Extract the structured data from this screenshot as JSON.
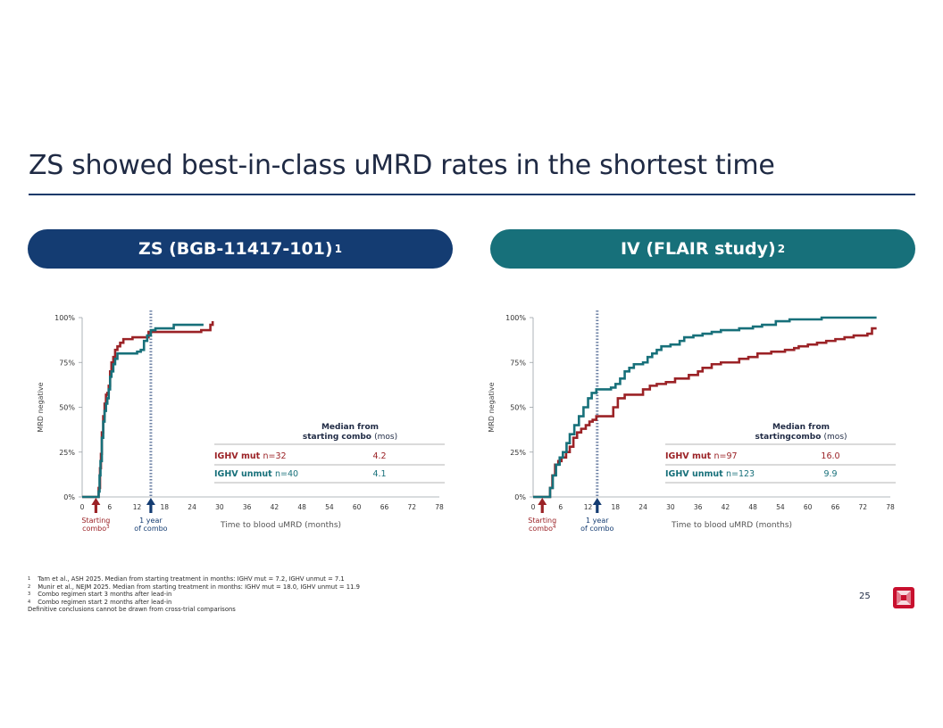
{
  "slide": {
    "title": "ZS showed best-in-class uMRD rates in the shortest time",
    "page_number": "25",
    "left_panel_title": "ZS (BGB-11417-101)",
    "left_panel_sup": "1",
    "right_panel_title": "IV (FLAIR study)",
    "right_panel_sup": "2"
  },
  "footnotes": [
    {
      "mark": "1",
      "text": "Tam et al., ASH 2025. Median from starting treatment in months: IGHV mut = 7.2, IGHV unmut = 7.1"
    },
    {
      "mark": "2",
      "text": "Munir et al., NEJM 2025. Median from starting treatment in months: IGHV mut = 18.0, IGHV unmut = 11.9"
    },
    {
      "mark": "3",
      "text": "Combo regimen start 3 months after lead-in"
    },
    {
      "mark": "4",
      "text": "Combo regimen start 2 months after lead-in"
    },
    {
      "mark": "",
      "text": "Definitive conclusions cannot be drawn from cross-trial comparisons"
    }
  ],
  "colors": {
    "mut": "#9b2226",
    "unmut": "#17707a",
    "navy": "#143c72",
    "marker_line": "#6f83a6"
  },
  "chart_data": [
    {
      "type": "line",
      "ylabel": "MRD negative",
      "xlabel": "Time to blood uMRD (months)",
      "x_ticks": [
        0,
        6,
        12,
        18,
        24,
        30,
        36,
        42,
        48,
        54,
        60,
        66,
        72,
        78
      ],
      "y_ticks": [
        "0%",
        "25%",
        "50%",
        "75%",
        "100%"
      ],
      "xlim": [
        0,
        78
      ],
      "ylim": [
        0,
        100
      ],
      "vertical_marker_x": 15,
      "start_arrow_x": 3,
      "start_label": "Starting combo",
      "start_sup": "3",
      "year_label": "1 year of combo",
      "table_header": "Median from starting combo",
      "table_header_suffix": "(mos)",
      "table_rows": [
        {
          "label_bold": "IGHV mut",
          "label_rest": "n=32",
          "value": "4.2",
          "series": "mut"
        },
        {
          "label_bold": "IGHV unmut",
          "label_rest": "n=40",
          "value": "4.1",
          "series": "unmut"
        }
      ],
      "series": [
        {
          "name": "IGHV mut",
          "color": "#9b2226",
          "points": [
            [
              0,
              0
            ],
            [
              3.5,
              0
            ],
            [
              3.6,
              5
            ],
            [
              3.9,
              16
            ],
            [
              4.1,
              24
            ],
            [
              4.3,
              36
            ],
            [
              4.6,
              45
            ],
            [
              4.9,
              52
            ],
            [
              5.2,
              57
            ],
            [
              5.5,
              58
            ],
            [
              5.8,
              62
            ],
            [
              6.1,
              70
            ],
            [
              6.4,
              75
            ],
            [
              6.8,
              78
            ],
            [
              7.2,
              82
            ],
            [
              7.7,
              84
            ],
            [
              8.3,
              86
            ],
            [
              9.0,
              88
            ],
            [
              9.8,
              88
            ],
            [
              11.0,
              89
            ],
            [
              12.3,
              89
            ],
            [
              13.4,
              89
            ],
            [
              14.5,
              92
            ],
            [
              16,
              92
            ],
            [
              26,
              92
            ],
            [
              26,
              93
            ],
            [
              28,
              96
            ],
            [
              28.5,
              98
            ]
          ]
        },
        {
          "name": "IGHV unmut",
          "color": "#17707a",
          "points": [
            [
              0,
              0
            ],
            [
              3.5,
              0
            ],
            [
              3.6,
              3
            ],
            [
              3.8,
              12
            ],
            [
              4.0,
              20
            ],
            [
              4.3,
              33
            ],
            [
              4.6,
              42
            ],
            [
              4.9,
              48
            ],
            [
              5.2,
              52
            ],
            [
              5.5,
              55
            ],
            [
              5.8,
              60
            ],
            [
              6.1,
              67
            ],
            [
              6.4,
              70
            ],
            [
              6.8,
              74
            ],
            [
              7.2,
              77
            ],
            [
              7.7,
              80
            ],
            [
              8.3,
              80
            ],
            [
              9.0,
              80
            ],
            [
              10.0,
              80
            ],
            [
              11.0,
              80
            ],
            [
              12.0,
              81
            ],
            [
              12.8,
              82
            ],
            [
              13.5,
              87
            ],
            [
              14.2,
              90
            ],
            [
              15.0,
              93
            ],
            [
              16.0,
              94
            ],
            [
              20,
              96
            ],
            [
              25,
              96
            ],
            [
              26.5,
              96
            ]
          ]
        }
      ]
    },
    {
      "type": "line",
      "ylabel": "MRD negative",
      "xlabel": "Time to blood uMRD (months)",
      "x_ticks": [
        0,
        6,
        12,
        18,
        24,
        30,
        36,
        42,
        48,
        54,
        60,
        66,
        72,
        78
      ],
      "y_ticks": [
        "0%",
        "25%",
        "50%",
        "75%",
        "100%"
      ],
      "xlim": [
        0,
        78
      ],
      "ylim": [
        0,
        100
      ],
      "vertical_marker_x": 14,
      "start_arrow_x": 2,
      "start_label": "Starting combo",
      "start_sup": "4",
      "year_label": "1 year of combo",
      "table_header": "Median from startingcombo",
      "table_header_suffix": "(mos)",
      "table_rows": [
        {
          "label_bold": "IGHV mut",
          "label_rest": "n=97",
          "value": "16.0",
          "series": "mut"
        },
        {
          "label_bold": "IGHV unmut",
          "label_rest": "n=123",
          "value": "9.9",
          "series": "unmut"
        }
      ],
      "series": [
        {
          "name": "IGHV mut",
          "color": "#9b2226",
          "points": [
            [
              0,
              0
            ],
            [
              3.5,
              0
            ],
            [
              3.7,
              5
            ],
            [
              4.2,
              12
            ],
            [
              4.8,
              18
            ],
            [
              5.5,
              20
            ],
            [
              6.2,
              22
            ],
            [
              7.2,
              25
            ],
            [
              8,
              28
            ],
            [
              8.8,
              33
            ],
            [
              9.6,
              36
            ],
            [
              10.5,
              38
            ],
            [
              11.5,
              40
            ],
            [
              12.3,
              42
            ],
            [
              13,
              43
            ],
            [
              13.8,
              45
            ],
            [
              15.5,
              45
            ],
            [
              17,
              45
            ],
            [
              17.5,
              50
            ],
            [
              18.5,
              55
            ],
            [
              20,
              57
            ],
            [
              23,
              57
            ],
            [
              24,
              60
            ],
            [
              25.5,
              62
            ],
            [
              27,
              63
            ],
            [
              29,
              64
            ],
            [
              31,
              66
            ],
            [
              33,
              66
            ],
            [
              34,
              68
            ],
            [
              36,
              70
            ],
            [
              37,
              72
            ],
            [
              39,
              74
            ],
            [
              41,
              75
            ],
            [
              44,
              75
            ],
            [
              45,
              77
            ],
            [
              47,
              78
            ],
            [
              49,
              80
            ],
            [
              52,
              81
            ],
            [
              55,
              82
            ],
            [
              57,
              83
            ],
            [
              58,
              84
            ],
            [
              60,
              85
            ],
            [
              62,
              86
            ],
            [
              64,
              87
            ],
            [
              66,
              88
            ],
            [
              68,
              89
            ],
            [
              70,
              90
            ],
            [
              73,
              91
            ],
            [
              74,
              94
            ],
            [
              75,
              94
            ]
          ]
        },
        {
          "name": "IGHV unmut",
          "color": "#17707a",
          "points": [
            [
              0,
              0
            ],
            [
              3.5,
              0
            ],
            [
              3.7,
              5
            ],
            [
              4.3,
              12
            ],
            [
              5,
              18
            ],
            [
              5.8,
              22
            ],
            [
              6.5,
              25
            ],
            [
              7.3,
              30
            ],
            [
              8,
              35
            ],
            [
              9,
              40
            ],
            [
              10,
              45
            ],
            [
              11,
              50
            ],
            [
              12,
              55
            ],
            [
              12.8,
              58
            ],
            [
              13.8,
              60
            ],
            [
              14.8,
              60
            ],
            [
              16,
              60
            ],
            [
              17,
              61
            ],
            [
              18,
              63
            ],
            [
              19,
              66
            ],
            [
              20,
              70
            ],
            [
              21,
              72
            ],
            [
              22,
              74
            ],
            [
              24,
              75
            ],
            [
              25,
              78
            ],
            [
              26,
              80
            ],
            [
              27,
              82
            ],
            [
              28,
              84
            ],
            [
              30,
              85
            ],
            [
              32,
              87
            ],
            [
              33,
              89
            ],
            [
              35,
              90
            ],
            [
              37,
              91
            ],
            [
              39,
              92
            ],
            [
              41,
              93
            ],
            [
              43,
              93
            ],
            [
              45,
              94
            ],
            [
              47,
              94
            ],
            [
              48,
              95
            ],
            [
              50,
              96
            ],
            [
              53,
              98
            ],
            [
              56,
              99
            ],
            [
              60,
              99
            ],
            [
              63,
              100
            ],
            [
              68,
              100
            ],
            [
              73,
              100
            ],
            [
              75,
              100
            ]
          ]
        }
      ]
    }
  ]
}
